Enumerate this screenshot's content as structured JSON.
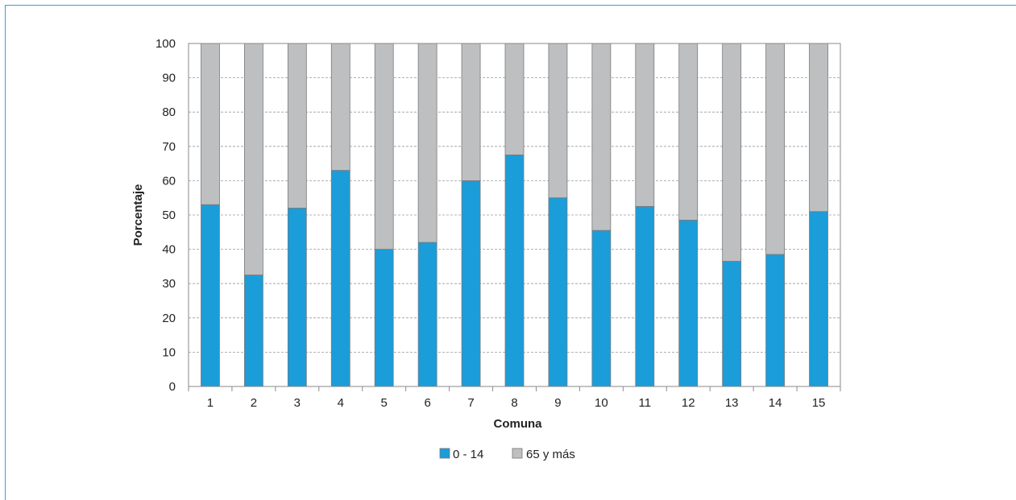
{
  "chart_data": {
    "type": "bar",
    "stacked": true,
    "title": "",
    "xlabel": "Comuna",
    "ylabel": "Porcentaje",
    "ylim": [
      0,
      100
    ],
    "yticks": [
      "0",
      "10",
      "20",
      "30",
      "40",
      "50",
      "60",
      "70",
      "80",
      "90",
      "100"
    ],
    "grid": true,
    "legend_position": "bottom",
    "categories": [
      "1",
      "2",
      "3",
      "4",
      "5",
      "6",
      "7",
      "8",
      "9",
      "10",
      "11",
      "12",
      "13",
      "14",
      "15"
    ],
    "series": [
      {
        "name": "0 - 14",
        "color": "#1b9dd9",
        "values": [
          53,
          32.5,
          52,
          63,
          40,
          42,
          60,
          67.5,
          55,
          45.5,
          52.5,
          48.5,
          36.5,
          38.5,
          51
        ]
      },
      {
        "name": "65 y más",
        "color": "#bebfc1",
        "values": [
          47,
          67.5,
          48,
          37,
          60,
          58,
          40,
          32.5,
          45,
          54.5,
          47.5,
          51.5,
          63.5,
          61.5,
          49
        ]
      }
    ]
  }
}
